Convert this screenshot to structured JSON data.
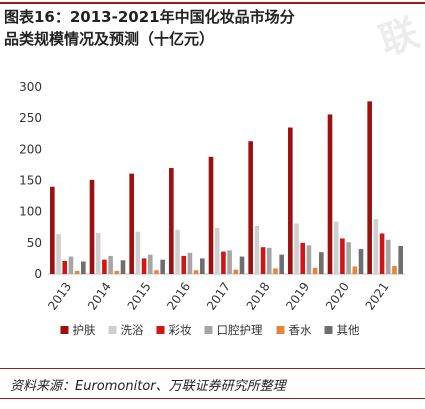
{
  "header": {
    "title": "图表16：2013-2021年中国化妆品市场分品类规模情况及预测（十亿元）",
    "watermark": "联"
  },
  "footer": {
    "source": "资料来源：Euromonitor、万联证券研究所整理"
  },
  "chart_data": {
    "type": "bar",
    "title": "",
    "xlabel": "",
    "ylabel": "",
    "ylim": [
      0,
      300
    ],
    "yticks": [
      0,
      50,
      100,
      150,
      200,
      250,
      300
    ],
    "grid": false,
    "legend_position": "bottom",
    "categories": [
      "2013",
      "2014",
      "2015",
      "2016",
      "2017",
      "2018",
      "2019",
      "2020",
      "2021"
    ],
    "series": [
      {
        "name": "护肤",
        "color": "#9b1111",
        "values": [
          140,
          151,
          161,
          170,
          188,
          213,
          235,
          256,
          277
        ]
      },
      {
        "name": "洗浴",
        "color": "#cfcfcf",
        "values": [
          64,
          66,
          68,
          71,
          74,
          77,
          81,
          84,
          88
        ]
      },
      {
        "name": "彩妆",
        "color": "#d11515",
        "values": [
          21,
          23,
          25,
          29,
          36,
          43,
          50,
          57,
          65
        ]
      },
      {
        "name": "口腔护理",
        "color": "#a6a6a6",
        "values": [
          28,
          29,
          31,
          34,
          38,
          42,
          46,
          51,
          55
        ]
      },
      {
        "name": "香水",
        "color": "#e8843c",
        "values": [
          5,
          5,
          6,
          6,
          7,
          9,
          10,
          12,
          13
        ]
      },
      {
        "name": "其他",
        "color": "#6e6e6e",
        "values": [
          20,
          22,
          23,
          25,
          28,
          31,
          35,
          40,
          45
        ]
      }
    ]
  }
}
